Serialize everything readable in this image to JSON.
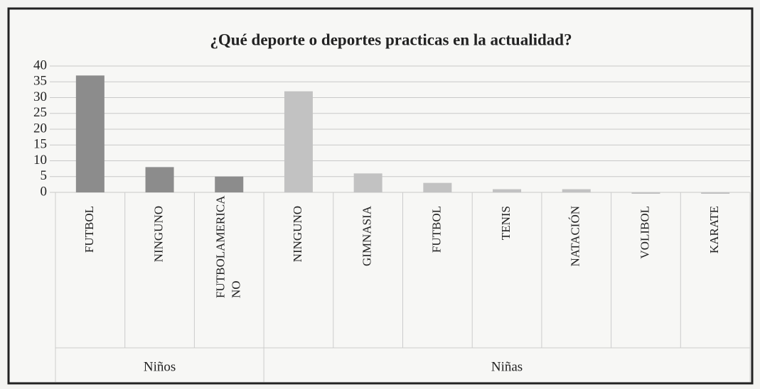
{
  "chart_data": {
    "type": "bar",
    "title": "¿Qué deporte o deportes practicas en la actualidad?",
    "groups": [
      {
        "name": "Niños",
        "color": "#8c8c8c",
        "categories": [
          "FUTBOL",
          "NINGUNO",
          "FUTBOLAMERICANO"
        ],
        "values": [
          37,
          8,
          5
        ]
      },
      {
        "name": "Niñas",
        "color": "#c2c2c2",
        "categories": [
          "NINGUNO",
          "GIMNASIA",
          "FUTBOL",
          "TENIS",
          "NATACIÓN",
          "VOLIBOL",
          "KARATE"
        ],
        "values": [
          32,
          6,
          3,
          1,
          1,
          0,
          0
        ]
      }
    ],
    "ylim": [
      0,
      40
    ],
    "yticks": [
      0,
      5,
      10,
      15,
      20,
      25,
      30,
      35,
      40
    ],
    "grid": true
  }
}
